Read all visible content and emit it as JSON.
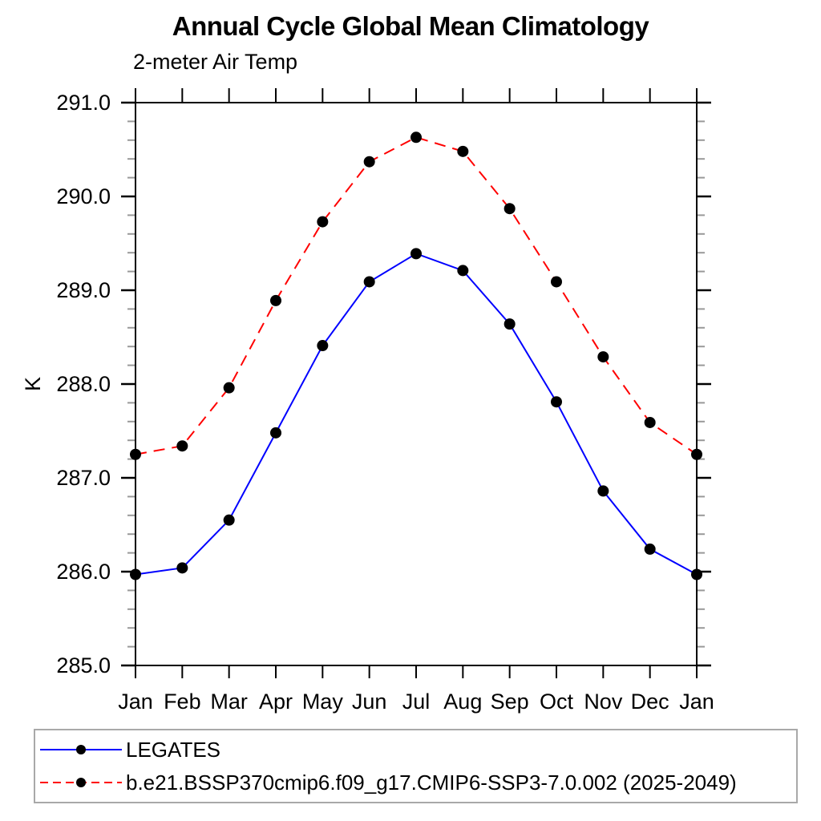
{
  "title": "Annual Cycle Global Mean Climatology",
  "subtitle": "2-meter Air Temp",
  "chart_data": {
    "type": "line",
    "title": "Annual Cycle Global Mean Climatology",
    "subtitle": "2-meter Air Temp",
    "ylabel": "K",
    "x_categories": [
      "Jan",
      "Feb",
      "Mar",
      "Apr",
      "May",
      "Jun",
      "Jul",
      "Aug",
      "Sep",
      "Oct",
      "Nov",
      "Dec",
      "Jan"
    ],
    "ylim": [
      285.0,
      291.0
    ],
    "ytick_labels": [
      "285.0",
      "286.0",
      "287.0",
      "288.0",
      "289.0",
      "290.0",
      "291.0"
    ],
    "ytick_interval": 1.0,
    "ytick_minor_interval": 0.2,
    "grid": "off",
    "legend_position": "bottom",
    "axis_color": "#000000",
    "minor_tick_color": "#999999",
    "marker": "filled-circle",
    "series": [
      {
        "name": "LEGATES",
        "color": "#0000ff",
        "style": "solid",
        "marker_color": "#000000",
        "values": [
          285.97,
          286.04,
          286.55,
          287.48,
          288.41,
          289.09,
          289.39,
          289.21,
          288.64,
          287.81,
          286.86,
          286.24,
          285.97
        ]
      },
      {
        "name": "b.e21.BSSP370cmip6.f09_g17.CMIP6-SSP3-7.0.002 (2025-2049)",
        "color": "#ff0000",
        "style": "dashed",
        "marker_color": "#000000",
        "values": [
          287.25,
          287.34,
          287.96,
          288.89,
          289.73,
          290.37,
          290.63,
          290.48,
          289.87,
          289.09,
          288.29,
          287.59,
          287.25
        ]
      }
    ]
  }
}
